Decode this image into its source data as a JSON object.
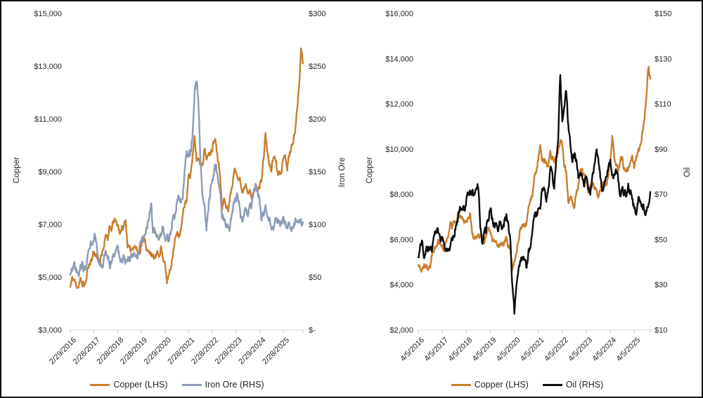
{
  "figure": {
    "description": "Two dual-axis commodity price line charts",
    "background": "#ffffff",
    "border_color": "#111111"
  },
  "chart_data": [
    {
      "type": "line",
      "title": "",
      "grid": false,
      "legend_position": "bottom",
      "x_labels": [
        "2/29/2016",
        "2/28/2017",
        "2/28/2018",
        "2/28/2019",
        "2/29/2020",
        "2/28/2021",
        "2/28/2022",
        "2/28/2023",
        "2/29/2024",
        "2/28/2025"
      ],
      "x_tick_interval_points": 12,
      "left_axis": {
        "title": "Copper",
        "min": 3000,
        "max": 15000,
        "ticks": [
          "$15,000",
          "$13,000",
          "$11,000",
          "$9,000",
          "$7,000",
          "$5,000",
          "$3,000"
        ]
      },
      "right_axis": {
        "title": "Iron Ore",
        "min": 0,
        "max": 300,
        "ticks": [
          "$300",
          "$250",
          "$200",
          "$150",
          "$100",
          "$50",
          "$-"
        ]
      },
      "series": [
        {
          "name": "Copper (LHS)",
          "axis": "left",
          "color": "#C87E2E",
          "noise": 420,
          "values": [
            4620,
            4950,
            4870,
            4700,
            4640,
            4900,
            4750,
            4720,
            4800,
            5450,
            5500,
            5750,
            5950,
            5830,
            5680,
            5600,
            5800,
            6150,
            6700,
            6480,
            6850,
            6800,
            7150,
            7080,
            7000,
            6700,
            6830,
            6850,
            7200,
            6250,
            6000,
            6050,
            6200,
            6150,
            6000,
            5900,
            6250,
            6450,
            6440,
            5950,
            5900,
            5950,
            5700,
            5750,
            5850,
            5850,
            6150,
            5680,
            5650,
            4750,
            5100,
            5350,
            5950,
            6400,
            6600,
            6610,
            6700,
            7300,
            7750,
            7950,
            8800,
            8950,
            9550,
            10250,
            9450,
            9500,
            9350,
            9300,
            9850,
            9550,
            9550,
            9750,
            9900,
            10300,
            10150,
            9350,
            8950,
            7550,
            7950,
            7650,
            7550,
            8050,
            8400,
            9050,
            8950,
            8850,
            8800,
            8150,
            8400,
            8550,
            8350,
            8250,
            7950,
            8250,
            8450,
            8350,
            8400,
            8700,
            9500,
            10450,
            9650,
            9250,
            9100,
            9550,
            9550,
            9050,
            8950,
            9100,
            9400,
            9700,
            9150,
            9600,
            9900,
            10100,
            10600,
            11300,
            12300,
            13700,
            13100
          ]
        },
        {
          "name": "Iron Ore (RHS)",
          "axis": "right",
          "color": "#8B9CB6",
          "noise": 13,
          "values": [
            52,
            56,
            60,
            55,
            52,
            57,
            60,
            56,
            59,
            73,
            80,
            80,
            89,
            85,
            70,
            62,
            57,
            65,
            76,
            72,
            62,
            64,
            72,
            76,
            78,
            70,
            66,
            67,
            65,
            64,
            67,
            68,
            72,
            73,
            70,
            76,
            88,
            86,
            94,
            100,
            110,
            118,
            93,
            93,
            88,
            85,
            92,
            95,
            88,
            89,
            84,
            93,
            103,
            108,
            121,
            124,
            120,
            124,
            155,
            170,
            165,
            168,
            185,
            225,
            238,
            215,
            162,
            124,
            119,
            96,
            112,
            130,
            140,
            150,
            155,
            139,
            133,
            108,
            106,
            99,
            95,
            96,
            110,
            122,
            125,
            126,
            112,
            103,
            111,
            112,
            108,
            118,
            119,
            129,
            135,
            130,
            120,
            105,
            109,
            117,
            107,
            103,
            97,
            95,
            105,
            102,
            101,
            101,
            106,
            102,
            98,
            98,
            95,
            98,
            101,
            103,
            104,
            103,
            102
          ]
        }
      ],
      "legend": [
        {
          "label": "Copper (LHS)",
          "color": "#C87E2E"
        },
        {
          "label": "Iron Ore (RHS)",
          "color": "#8B9CB6"
        }
      ]
    },
    {
      "type": "line",
      "title": "",
      "grid": false,
      "legend_position": "bottom",
      "x_labels": [
        "4/5/2016",
        "4/5/2017",
        "4/5/2018",
        "4/5/2019",
        "4/5/2020",
        "4/5/2021",
        "4/5/2022",
        "4/5/2023",
        "4/5/2024",
        "4/5/2025"
      ],
      "x_tick_interval_points": 12,
      "left_axis": {
        "title": "Copper",
        "min": 2000,
        "max": 16000,
        "ticks": [
          "$16,000",
          "$14,000",
          "$12,000",
          "$10,000",
          "$8,000",
          "$6,000",
          "$4,000",
          "$2,000"
        ]
      },
      "right_axis": {
        "title": "Oil",
        "min": 10,
        "max": 150,
        "ticks": [
          "$150",
          "$130",
          "$110",
          "$90",
          "$70",
          "$50",
          "$30",
          "$10"
        ]
      },
      "series": [
        {
          "name": "Copper (LHS)",
          "axis": "left",
          "color": "#C87E2E",
          "noise": 420,
          "values": [
            4870,
            4700,
            4640,
            4900,
            4750,
            4720,
            4800,
            5450,
            5500,
            5750,
            5950,
            5830,
            5680,
            5600,
            5800,
            6150,
            6700,
            6480,
            6850,
            6800,
            7150,
            7080,
            7000,
            6700,
            6830,
            6850,
            7200,
            6250,
            6000,
            6050,
            6200,
            6150,
            6000,
            5900,
            6250,
            6450,
            6440,
            5950,
            5900,
            5950,
            5700,
            5750,
            5850,
            5850,
            6150,
            5680,
            5650,
            4750,
            5100,
            5350,
            5950,
            6400,
            6600,
            6610,
            6700,
            7300,
            7750,
            7950,
            8800,
            8950,
            9550,
            10250,
            9450,
            9500,
            9350,
            9300,
            9850,
            9550,
            9550,
            9750,
            9900,
            10300,
            10150,
            9350,
            8950,
            7550,
            7950,
            7650,
            7550,
            8050,
            8400,
            9050,
            8950,
            8850,
            8800,
            8150,
            8400,
            8550,
            8350,
            8250,
            7950,
            8250,
            8450,
            8350,
            8400,
            8700,
            9500,
            10450,
            9650,
            9250,
            9100,
            9550,
            9550,
            9050,
            8950,
            9100,
            9400,
            9700,
            9150,
            9600,
            9900,
            10100,
            10600,
            11300,
            12300,
            13700,
            13100
          ]
        },
        {
          "name": "Oil (RHS)",
          "axis": "right",
          "color": "#0D0D0D",
          "noise": 6,
          "values": [
            42,
            47,
            49,
            42,
            46,
            46,
            48,
            46,
            53,
            53,
            54,
            50,
            51,
            49,
            45,
            47,
            47,
            50,
            52,
            57,
            59,
            64,
            62,
            64,
            67,
            70,
            71,
            70,
            69,
            72,
            74,
            57,
            47,
            52,
            55,
            59,
            63,
            60,
            57,
            57,
            55,
            57,
            55,
            57,
            60,
            56,
            50,
            29,
            17,
            29,
            38,
            41,
            42,
            40,
            38,
            43,
            48,
            52,
            60,
            62,
            62,
            65,
            72,
            73,
            68,
            72,
            81,
            79,
            73,
            85,
            95,
            123,
            103,
            110,
            116,
            100,
            92,
            86,
            87,
            85,
            78,
            78,
            77,
            73,
            79,
            72,
            70,
            76,
            82,
            89,
            86,
            77,
            72,
            74,
            77,
            81,
            85,
            78,
            79,
            81,
            76,
            70,
            72,
            70,
            70,
            74,
            71,
            68,
            63,
            61,
            68,
            67,
            64,
            64,
            62,
            66,
            71
          ]
        }
      ],
      "legend": [
        {
          "label": "Copper (LHS)",
          "color": "#C87E2E"
        },
        {
          "label": "Oil (RHS)",
          "color": "#0D0D0D"
        }
      ]
    }
  ]
}
